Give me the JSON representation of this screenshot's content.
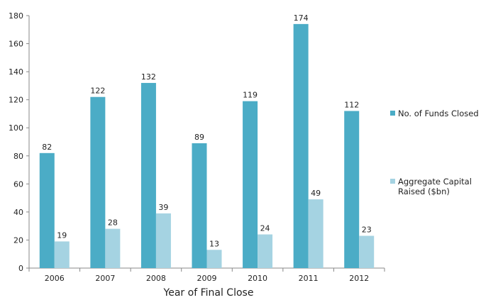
{
  "chart_data": {
    "type": "bar",
    "title": "",
    "xlabel": "Year of Final Close",
    "ylabel": "",
    "ylim": [
      0,
      180
    ],
    "yticks": [
      0,
      20,
      40,
      60,
      80,
      100,
      120,
      140,
      160,
      180
    ],
    "categories": [
      "2006",
      "2007",
      "2008",
      "2009",
      "2010",
      "2011",
      "2012"
    ],
    "series": [
      {
        "name": "No. of Funds Closed",
        "color": "#4BACC6",
        "values": [
          82,
          122,
          132,
          89,
          119,
          174,
          112
        ]
      },
      {
        "name": "Aggregate Capital Raised ($bn)",
        "color": "#A5D3E2",
        "values": [
          19,
          28,
          39,
          13,
          24,
          49,
          23
        ]
      }
    ],
    "grid": false,
    "legend_position": "right"
  }
}
